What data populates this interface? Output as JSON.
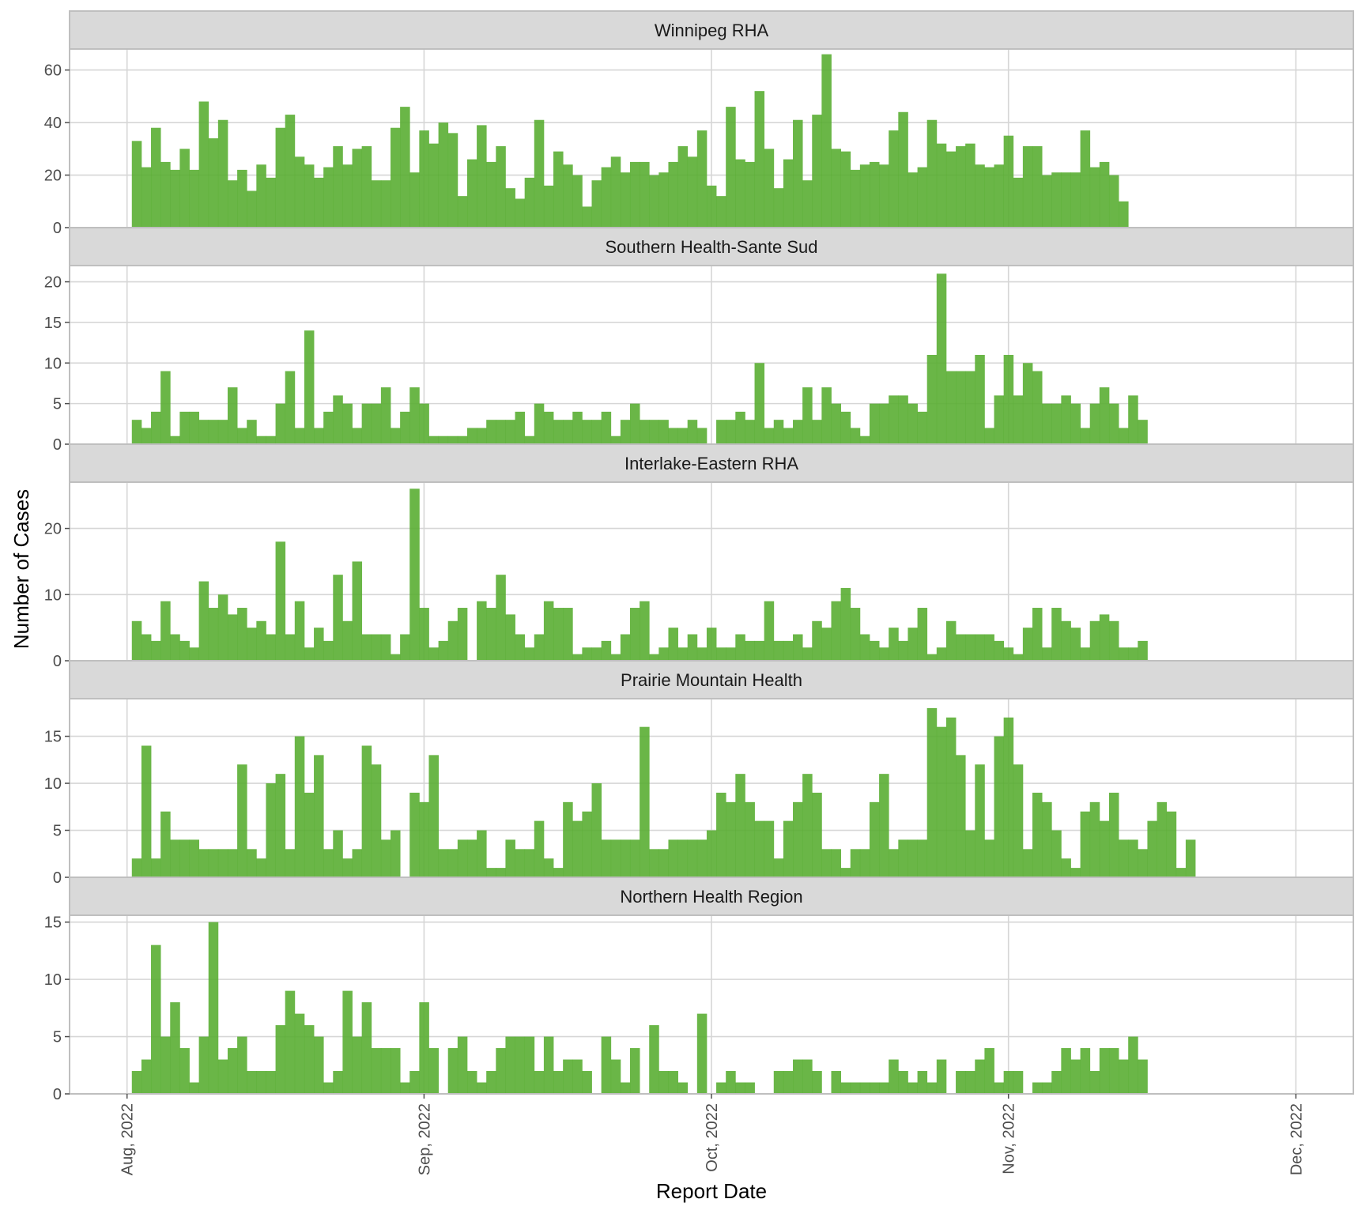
{
  "chart_data": {
    "type": "bar",
    "title": "",
    "xlabel": "Report Date",
    "ylabel": "Number of Cases",
    "x_start": "2022-08-02",
    "x_ticks": [
      {
        "date": "2022-08-01",
        "label": "Aug, 2022"
      },
      {
        "date": "2022-09-01",
        "label": "Sep, 2022"
      },
      {
        "date": "2022-10-01",
        "label": "Oct, 2022"
      },
      {
        "date": "2022-11-01",
        "label": "Nov, 2022"
      },
      {
        "date": "2022-12-01",
        "label": "Dec, 2022"
      }
    ],
    "xlim": [
      "2022-07-26",
      "2022-12-07"
    ],
    "grid": true,
    "bar_color": "#5aae33",
    "panels": [
      {
        "name": "Winnipeg RHA",
        "ylim": [
          0,
          68
        ],
        "yticks": [
          0,
          20,
          40,
          60
        ],
        "values": [
          33,
          23,
          38,
          25,
          22,
          30,
          22,
          48,
          34,
          41,
          18,
          22,
          14,
          24,
          19,
          38,
          43,
          27,
          24,
          19,
          23,
          31,
          24,
          30,
          31,
          18,
          18,
          38,
          46,
          21,
          37,
          32,
          40,
          36,
          12,
          26,
          39,
          25,
          31,
          15,
          11,
          19,
          41,
          16,
          29,
          24,
          20,
          8,
          18,
          23,
          27,
          21,
          25,
          25,
          20,
          21,
          25,
          31,
          27,
          37,
          16,
          12,
          46,
          26,
          25,
          52,
          30,
          15,
          26,
          41,
          18,
          43,
          66,
          30,
          29,
          22,
          24,
          25,
          24,
          37,
          44,
          21,
          23,
          41,
          32,
          29,
          31,
          32,
          24,
          23,
          24,
          35,
          19,
          31,
          31,
          20,
          21,
          21,
          21,
          37,
          23,
          25,
          20,
          10
        ]
      },
      {
        "name": "Southern Health-Sante Sud",
        "ylim": [
          0,
          22
        ],
        "yticks": [
          0,
          5,
          10,
          15,
          20
        ],
        "values": [
          3,
          2,
          4,
          9,
          1,
          4,
          4,
          3,
          3,
          3,
          7,
          2,
          3,
          1,
          1,
          5,
          9,
          2,
          14,
          2,
          4,
          6,
          5,
          2,
          5,
          5,
          7,
          2,
          4,
          7,
          5,
          1,
          1,
          1,
          1,
          2,
          2,
          3,
          3,
          3,
          4,
          1,
          5,
          4,
          3,
          3,
          4,
          3,
          3,
          4,
          1,
          3,
          5,
          3,
          3,
          3,
          2,
          2,
          3,
          2,
          0,
          3,
          3,
          4,
          3,
          10,
          2,
          3,
          2,
          3,
          7,
          3,
          7,
          5,
          4,
          2,
          1,
          5,
          5,
          6,
          6,
          5,
          4,
          11,
          21,
          9,
          9,
          9,
          11,
          2,
          6,
          11,
          6,
          10,
          9,
          5,
          5,
          6,
          5,
          2,
          5,
          7,
          5,
          2,
          6,
          3
        ]
      },
      {
        "name": "Interlake-Eastern RHA",
        "ylim": [
          0,
          27
        ],
        "yticks": [
          0,
          10,
          20
        ],
        "values": [
          6,
          4,
          3,
          9,
          4,
          3,
          2,
          12,
          8,
          10,
          7,
          8,
          5,
          6,
          4,
          18,
          4,
          9,
          2,
          5,
          3,
          13,
          6,
          15,
          4,
          4,
          4,
          1,
          4,
          26,
          8,
          2,
          3,
          6,
          8,
          0,
          9,
          8,
          13,
          7,
          4,
          2,
          4,
          9,
          8,
          8,
          1,
          2,
          2,
          3,
          1,
          4,
          8,
          9,
          1,
          2,
          5,
          2,
          4,
          2,
          5,
          2,
          2,
          4,
          3,
          3,
          9,
          3,
          3,
          4,
          2,
          6,
          5,
          9,
          11,
          8,
          4,
          3,
          2,
          5,
          3,
          5,
          8,
          1,
          2,
          6,
          4,
          4,
          4,
          4,
          3,
          2,
          1,
          5,
          8,
          2,
          8,
          6,
          5,
          2,
          6,
          7,
          6,
          2,
          2,
          3
        ]
      },
      {
        "name": "Prairie Mountain Health",
        "ylim": [
          0,
          19
        ],
        "yticks": [
          0,
          5,
          10,
          15
        ],
        "values": [
          2,
          14,
          2,
          7,
          4,
          4,
          4,
          3,
          3,
          3,
          3,
          12,
          3,
          2,
          10,
          11,
          3,
          15,
          9,
          13,
          3,
          5,
          2,
          3,
          14,
          12,
          4,
          5,
          0,
          9,
          8,
          13,
          3,
          3,
          4,
          4,
          5,
          1,
          1,
          4,
          3,
          3,
          6,
          2,
          1,
          8,
          6,
          7,
          10,
          4,
          4,
          4,
          4,
          16,
          3,
          3,
          4,
          4,
          4,
          4,
          5,
          9,
          8,
          11,
          8,
          6,
          6,
          2,
          6,
          8,
          11,
          9,
          3,
          3,
          1,
          3,
          3,
          8,
          11,
          3,
          4,
          4,
          4,
          18,
          16,
          17,
          13,
          5,
          12,
          4,
          15,
          17,
          12,
          3,
          9,
          8,
          5,
          2,
          1,
          7,
          8,
          6,
          9,
          4,
          4,
          3,
          6,
          8,
          7,
          1,
          4
        ]
      },
      {
        "name": "Northern Health Region",
        "ylim": [
          0,
          15.6
        ],
        "yticks": [
          0,
          5,
          10,
          15
        ],
        "values": [
          2,
          3,
          13,
          5,
          8,
          4,
          1,
          5,
          15,
          3,
          4,
          5,
          2,
          2,
          2,
          6,
          9,
          7,
          6,
          5,
          1,
          2,
          9,
          5,
          8,
          4,
          4,
          4,
          1,
          2,
          8,
          4,
          0,
          4,
          5,
          2,
          1,
          2,
          4,
          5,
          5,
          5,
          2,
          5,
          2,
          3,
          3,
          2,
          0,
          5,
          3,
          1,
          4,
          0,
          6,
          2,
          2,
          1,
          0,
          7,
          0,
          1,
          2,
          1,
          1,
          0,
          0,
          2,
          2,
          3,
          3,
          2,
          0,
          2,
          1,
          1,
          1,
          1,
          1,
          3,
          2,
          1,
          2,
          1,
          3,
          0,
          2,
          2,
          3,
          4,
          1,
          2,
          2,
          0,
          1,
          1,
          2,
          4,
          3,
          4,
          2,
          4,
          4,
          3,
          5,
          3
        ]
      }
    ]
  }
}
